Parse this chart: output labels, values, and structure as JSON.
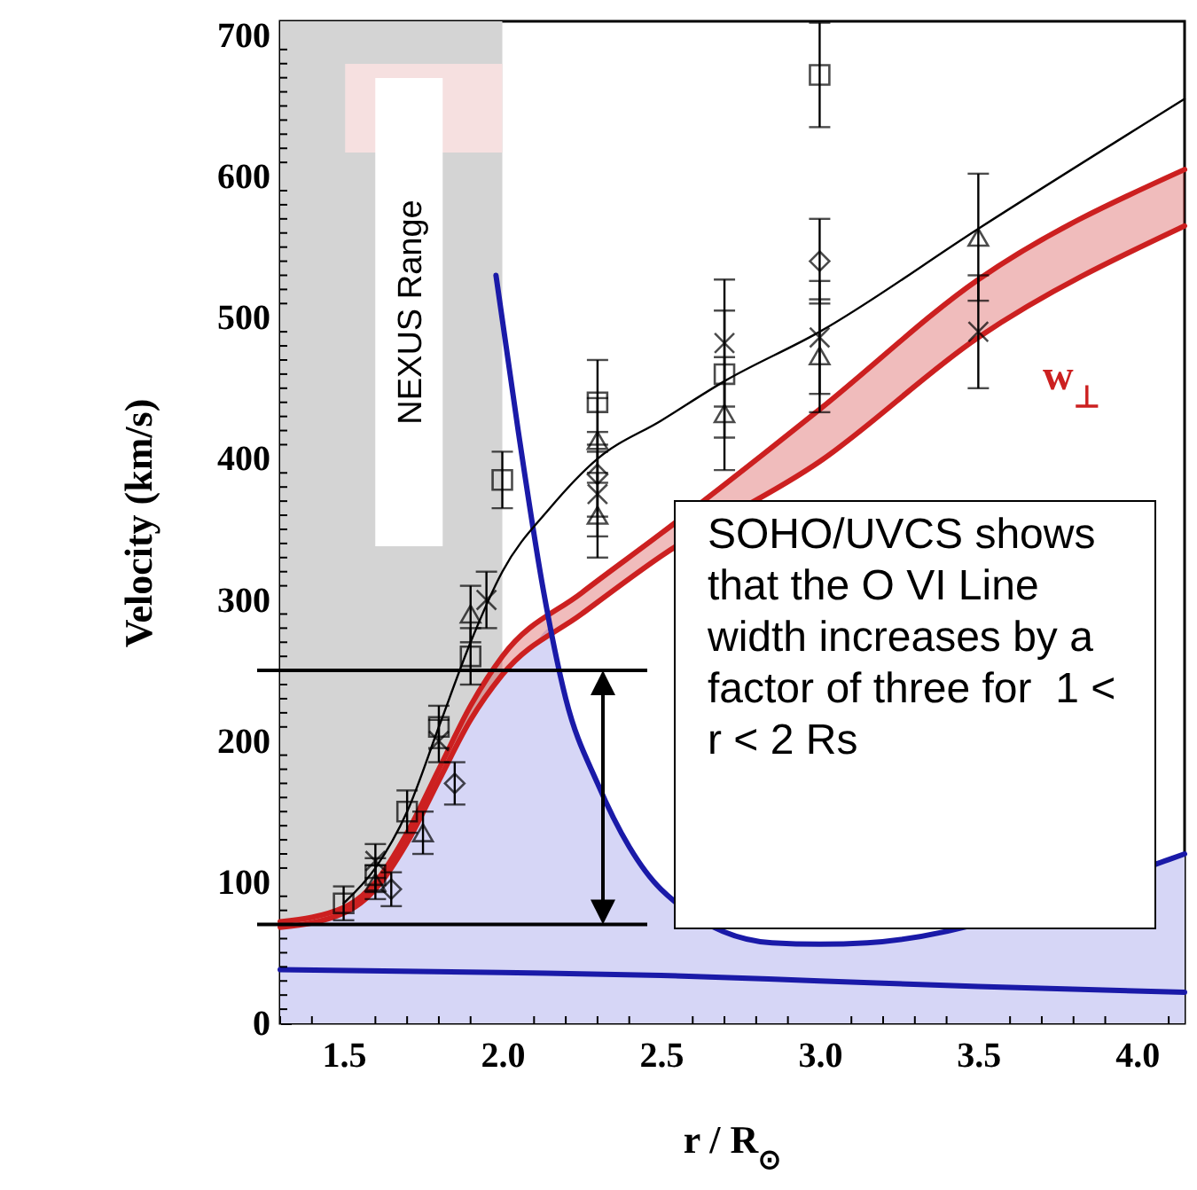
{
  "chart_data": {
    "type": "line",
    "xlabel": "r / R$_{⊙}$",
    "ylabel": "Velocity  (km/s)",
    "xlim": [
      1.3,
      4.15
    ],
    "ylim": [
      0,
      710
    ],
    "xticks": [
      {
        "value": 1.3,
        "label": null
      },
      {
        "value": 1.4,
        "label": null
      },
      1.5,
      {
        "value": 1.6,
        "label": null
      },
      {
        "value": 1.7,
        "label": null
      },
      {
        "value": 1.8,
        "label": null
      },
      {
        "value": 1.9,
        "label": null
      },
      {
        "value": 2,
        "label": "2.0"
      },
      {
        "value": 2.1,
        "label": null
      },
      {
        "value": 2.2,
        "label": null
      },
      {
        "value": 2.3,
        "label": null
      },
      {
        "value": 2.4,
        "label": null
      },
      2.5,
      {
        "value": 2.6,
        "label": null
      },
      {
        "value": 2.7,
        "label": null
      },
      {
        "value": 2.8,
        "label": null
      },
      {
        "value": 2.9,
        "label": null
      },
      {
        "value": 3,
        "label": "3.0"
      },
      {
        "value": 3.1,
        "label": null
      },
      {
        "value": 3.2,
        "label": null
      },
      {
        "value": 3.3,
        "label": null
      },
      {
        "value": 3.4,
        "label": null
      },
      3.5,
      {
        "value": 3.6,
        "label": null
      },
      {
        "value": 3.7,
        "label": null
      },
      {
        "value": 3.8,
        "label": null
      },
      {
        "value": 3.9,
        "label": null
      },
      {
        "value": 4,
        "label": "4.0"
      },
      {
        "value": 4.1,
        "label": null
      }
    ],
    "yticks": [
      0,
      {
        "value": 10,
        "label": null
      },
      {
        "value": 20,
        "label": null
      },
      {
        "value": 30,
        "label": null
      },
      {
        "value": 40,
        "label": null
      },
      {
        "value": 50,
        "label": null
      },
      {
        "value": 60,
        "label": null
      },
      {
        "value": 70,
        "label": null
      },
      {
        "value": 80,
        "label": null
      },
      {
        "value": 90,
        "label": null
      },
      100,
      {
        "value": 110,
        "label": null
      },
      {
        "value": 120,
        "label": null
      },
      {
        "value": 130,
        "label": null
      },
      {
        "value": 140,
        "label": null
      },
      {
        "value": 150,
        "label": null
      },
      {
        "value": 160,
        "label": null
      },
      {
        "value": 170,
        "label": null
      },
      {
        "value": 180,
        "label": null
      },
      {
        "value": 190,
        "label": null
      },
      200,
      {
        "value": 210,
        "label": null
      },
      {
        "value": 220,
        "label": null
      },
      {
        "value": 230,
        "label": null
      },
      {
        "value": 240,
        "label": null
      },
      {
        "value": 250,
        "label": null
      },
      {
        "value": 260,
        "label": null
      },
      {
        "value": 270,
        "label": null
      },
      {
        "value": 280,
        "label": null
      },
      {
        "value": 290,
        "label": null
      },
      300,
      {
        "value": 310,
        "label": null
      },
      {
        "value": 320,
        "label": null
      },
      {
        "value": 330,
        "label": null
      },
      {
        "value": 340,
        "label": null
      },
      {
        "value": 350,
        "label": null
      },
      {
        "value": 360,
        "label": null
      },
      {
        "value": 370,
        "label": null
      },
      {
        "value": 380,
        "label": null
      },
      {
        "value": 390,
        "label": null
      },
      400,
      {
        "value": 410,
        "label": null
      },
      {
        "value": 420,
        "label": null
      },
      {
        "value": 430,
        "label": null
      },
      {
        "value": 440,
        "label": null
      },
      {
        "value": 450,
        "label": null
      },
      {
        "value": 460,
        "label": null
      },
      {
        "value": 470,
        "label": null
      },
      {
        "value": 480,
        "label": null
      },
      {
        "value": 490,
        "label": null
      },
      500,
      {
        "value": 510,
        "label": null
      },
      {
        "value": 520,
        "label": null
      },
      {
        "value": 530,
        "label": null
      },
      {
        "value": 540,
        "label": null
      },
      {
        "value": 550,
        "label": null
      },
      {
        "value": 560,
        "label": null
      },
      {
        "value": 570,
        "label": null
      },
      {
        "value": 580,
        "label": null
      },
      {
        "value": 590,
        "label": null
      },
      600,
      {
        "value": 610,
        "label": null
      },
      {
        "value": 620,
        "label": null
      },
      {
        "value": 630,
        "label": null
      },
      {
        "value": 640,
        "label": null
      },
      {
        "value": 650,
        "label": null
      },
      {
        "value": 660,
        "label": null
      },
      {
        "value": 670,
        "label": null
      },
      {
        "value": 680,
        "label": null
      },
      {
        "value": 690,
        "label": null
      },
      700
    ],
    "grid": false,
    "legend": false,
    "bands": [
      {
        "axis": "x",
        "from": 1.3,
        "to": 2.0,
        "label": "NEXUS Range",
        "color": "#d4d4d4"
      }
    ],
    "ref_lines": [
      {
        "axis": "y",
        "value": 250,
        "color": "#000000"
      },
      {
        "axis": "y",
        "value": 70,
        "color": "#000000"
      }
    ],
    "annotations": [
      "SOHO/UVCS shows that the O VI Line width increases by a factor of three for  1 < r < 2 Rs"
    ],
    "series": [
      {
        "type": "area",
        "color": "#d6d6f6",
        "x": [
          1.3,
          1.5,
          1.7,
          1.9,
          2.0,
          2.1,
          2.15,
          2.2,
          2.3,
          2.4,
          2.5,
          2.85,
          3.0,
          3.15,
          4.1,
          4.15
        ],
        "values": [
          68,
          78,
          128,
          215,
          247,
          268,
          280,
          230,
          170,
          125,
          95,
          57,
          56,
          57,
          116,
          120
        ]
      },
      {
        "type": "line",
        "name": "w$_{⊥}$",
        "color": "#cc2020",
        "x": [
          1.3,
          1.5,
          1.6,
          1.7,
          1.8,
          1.9,
          2.0,
          2.25,
          2.5,
          3.0,
          3.5,
          4.15
        ],
        "values": [
          72,
          82,
          100,
          135,
          180,
          225,
          260,
          305,
          347,
          435,
          527,
          605
        ],
        "lower": [
          68,
          78,
          95,
          128,
          172,
          215,
          247,
          290,
          331,
          398,
          486,
          565
        ],
        "upper": [
          72,
          82,
          100,
          135,
          180,
          225,
          260,
          305,
          347,
          435,
          527,
          605
        ]
      },
      {
        "type": "line",
        "color": "#cc2020",
        "x": [
          1.3,
          1.5,
          1.6,
          1.7,
          1.8,
          1.9,
          2.0,
          2.25,
          2.5,
          3.0,
          3.5,
          4.15
        ],
        "values": [
          68,
          78,
          95,
          128,
          172,
          215,
          247,
          290,
          331,
          398,
          486,
          565
        ]
      },
      {
        "type": "line",
        "color": "#1a1aa8",
        "x": [
          1.98,
          2.05,
          2.13,
          2.2,
          2.3,
          2.4,
          2.5,
          2.85,
          3.0,
          3.15,
          4.1,
          4.15
        ],
        "values": [
          530,
          420,
          306,
          230,
          170,
          125,
          95,
          57,
          56,
          57,
          116,
          120
        ]
      },
      {
        "type": "line",
        "color": "#1a1aa8",
        "x": [
          1.3,
          2.0,
          2.5,
          3.0,
          3.5,
          4.15
        ],
        "values": [
          38,
          36,
          34,
          30,
          26,
          22
        ]
      },
      {
        "type": "line",
        "color": "#000000",
        "x": [
          1.5,
          1.6,
          1.7,
          1.8,
          1.9,
          2.0,
          2.15,
          2.3,
          2.5,
          2.7,
          3.0,
          3.5,
          4.15
        ],
        "values": [
          85,
          110,
          150,
          210,
          270,
          320,
          365,
          400,
          427,
          455,
          490,
          563,
          655
        ]
      },
      {
        "type": "scatter",
        "marker": "square",
        "color": "#000000",
        "x": [
          1.5,
          1.6,
          1.7,
          1.8,
          1.9,
          2.0,
          2.3,
          2.7,
          3.0
        ],
        "values": [
          85,
          105,
          150,
          210,
          260,
          385,
          440,
          460,
          672
        ],
        "errors": [
          12,
          12,
          15,
          15,
          20,
          20,
          30,
          45,
          37
        ]
      },
      {
        "type": "scatter",
        "marker": "triangle",
        "color": "#000000",
        "x": [
          1.6,
          1.75,
          1.9,
          2.3,
          2.3,
          2.7,
          3.0,
          3.5
        ],
        "values": [
          100,
          135,
          290,
          413,
          360,
          432,
          473,
          557
        ],
        "errors": [
          12,
          15,
          20,
          30,
          30,
          40,
          40,
          45
        ]
      },
      {
        "type": "scatter",
        "marker": "diamond",
        "color": "#000000",
        "x": [
          1.65,
          1.85,
          2.3,
          3.0
        ],
        "values": [
          95,
          170,
          389,
          540
        ],
        "errors": [
          12,
          15,
          30,
          30
        ]
      },
      {
        "type": "scatter",
        "marker": "cross",
        "color": "#000000",
        "x": [
          1.6,
          1.8,
          1.95,
          2.3,
          2.7,
          3.0,
          3.5
        ],
        "values": [
          115,
          200,
          300,
          375,
          482,
          486,
          490
        ],
        "errors": [
          12,
          15,
          20,
          30,
          45,
          40,
          40
        ]
      }
    ]
  }
}
